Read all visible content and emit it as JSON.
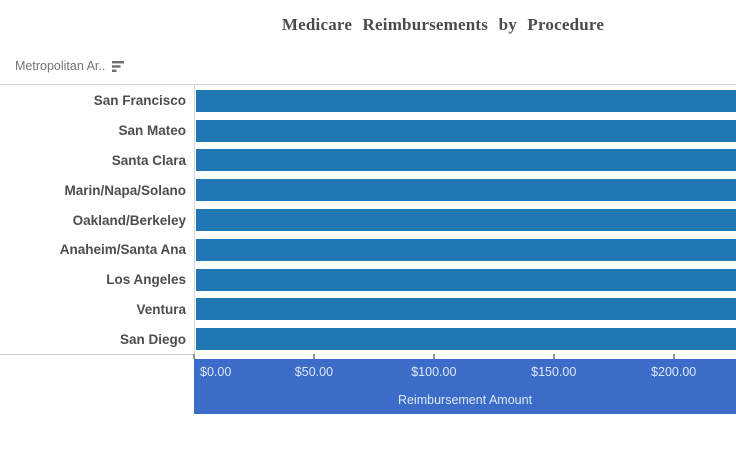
{
  "header": {
    "field_label": "Metropolitan Ar.."
  },
  "chart_data": {
    "type": "bar",
    "orientation": "horizontal",
    "title": "Medicare Reimbursements by Procedure",
    "categories": [
      "San Francisco",
      "San Mateo",
      "Santa Clara",
      "Marin/Napa/Solano",
      "Oakland/Berkeley",
      "Anaheim/Santa Ana",
      "Los Angeles",
      "Ventura",
      "San Diego"
    ],
    "values": [
      226,
      226,
      226,
      226,
      226,
      226,
      226,
      226,
      226
    ],
    "bars_clipped_at_right_edge": true,
    "xlabel": "Reimbursement Amount",
    "x_tick_labels": [
      "$0.00",
      "$50.00",
      "$100.00",
      "$150.00",
      "$200.00"
    ],
    "x_tick_values": [
      0,
      50,
      100,
      150,
      200
    ],
    "xlim": [
      0,
      226
    ],
    "ylabel": "",
    "legend": "none",
    "grid": false
  },
  "colors": {
    "bar": "#2177b4",
    "axis_band": "#3b6cc7",
    "axis_text": "rgba(255,255,255,0.84)",
    "title_text": "#4b4b4b",
    "category_text": "#4d4d4d",
    "header_text": "#757575",
    "divider": "#d2d2d2",
    "tick": "#8f8f8f"
  }
}
